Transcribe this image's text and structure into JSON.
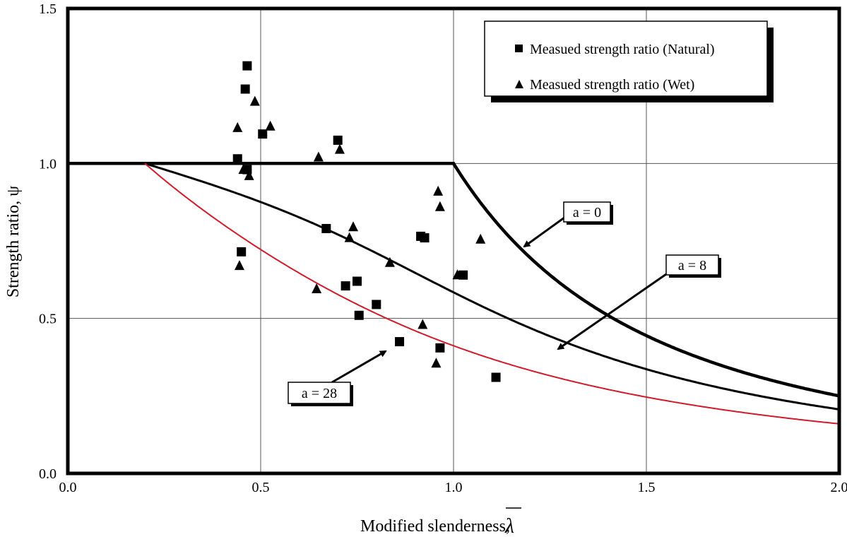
{
  "chart_data": {
    "type": "scatter",
    "xlabel": "Modified slenderness,",
    "xlabel_symbol": "λ",
    "ylabel": "Strength ratio, ψ",
    "xlim": [
      0,
      2
    ],
    "ylim": [
      0,
      1.5
    ],
    "x_ticks": [
      "0.0",
      "0.5",
      "1.0",
      "1.5",
      "2.0"
    ],
    "y_ticks": [
      "0.0",
      "0.5",
      "1.0",
      "1.5"
    ],
    "x_tick_values": [
      0,
      0.5,
      1.0,
      1.5,
      2.0
    ],
    "y_tick_values": [
      0,
      0.5,
      1.0,
      1.5
    ],
    "grid": true,
    "legend_position": "top-right",
    "series": [
      {
        "name": "Measued strength ratio (Natural)",
        "marker": "square",
        "color": "#000000",
        "points": [
          [
            0.465,
            1.315
          ],
          [
            0.46,
            1.24
          ],
          [
            0.505,
            1.095
          ],
          [
            0.44,
            1.015
          ],
          [
            0.465,
            0.98
          ],
          [
            0.7,
            1.075
          ],
          [
            0.67,
            0.79
          ],
          [
            0.915,
            0.765
          ],
          [
            0.925,
            0.76
          ],
          [
            0.45,
            0.715
          ],
          [
            0.72,
            0.605
          ],
          [
            0.75,
            0.62
          ],
          [
            1.025,
            0.64
          ],
          [
            0.8,
            0.545
          ],
          [
            0.755,
            0.51
          ],
          [
            0.86,
            0.425
          ],
          [
            0.965,
            0.405
          ],
          [
            1.11,
            0.31
          ]
        ]
      },
      {
        "name": "Measued strength ratio (Wet)",
        "marker": "triangle",
        "color": "#000000",
        "points": [
          [
            0.485,
            1.2
          ],
          [
            0.525,
            1.12
          ],
          [
            0.44,
            1.115
          ],
          [
            0.65,
            1.02
          ],
          [
            0.705,
            1.045
          ],
          [
            0.455,
            0.98
          ],
          [
            0.47,
            0.96
          ],
          [
            0.96,
            0.91
          ],
          [
            0.965,
            0.86
          ],
          [
            0.74,
            0.795
          ],
          [
            0.73,
            0.76
          ],
          [
            1.07,
            0.755
          ],
          [
            0.835,
            0.68
          ],
          [
            1.01,
            0.64
          ],
          [
            0.445,
            0.67
          ],
          [
            0.645,
            0.595
          ],
          [
            0.92,
            0.48
          ],
          [
            0.955,
            0.355
          ]
        ]
      }
    ],
    "curves": [
      {
        "label": "a = 0",
        "a": 0,
        "color": "#000000",
        "role": "thick"
      },
      {
        "label": "a = 8",
        "a": 8,
        "color": "#000000",
        "role": "medium"
      },
      {
        "label": "a = 28",
        "a": 28,
        "color": "#d01b2a",
        "role": "thin"
      }
    ],
    "curve_model": {
      "lambda0": 0.2,
      "plateau_end_a0": 1.0
    }
  }
}
